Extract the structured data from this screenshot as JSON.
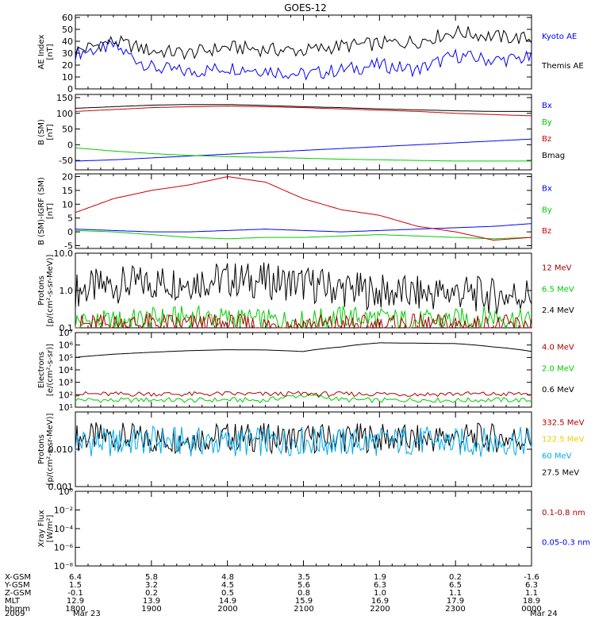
{
  "title": "GOES-12",
  "colors": {
    "black": "#000000",
    "blue": "#0000ff",
    "red": "#cc0000",
    "green": "#00cc00",
    "darkred": "#aa0000",
    "cyan": "#00aaee",
    "yellow": "#eecc00"
  },
  "chart_data": [
    {
      "type": "line",
      "ylabel": [
        "AE Index",
        "[nT]"
      ],
      "yticks": [
        "0",
        "10",
        "20",
        "30",
        "40",
        "50",
        "60"
      ],
      "ylim": [
        0,
        62
      ],
      "scale": "linear",
      "x": [
        "1800",
        "1830",
        "1900",
        "1930",
        "2000",
        "2030",
        "2100",
        "2130",
        "2200",
        "2230",
        "2300",
        "2330",
        "0000"
      ],
      "series": [
        {
          "name": "Kyoto AE",
          "color": "blue",
          "values": [
            30,
            36,
            18,
            14,
            18,
            16,
            12,
            16,
            20,
            16,
            28,
            24,
            26
          ]
        },
        {
          "name": "Themis AE",
          "color": "black",
          "values": [
            32,
            40,
            32,
            30,
            35,
            33,
            32,
            36,
            38,
            40,
            48,
            44,
            42
          ]
        }
      ],
      "legend": [
        {
          "text": "Kyoto AE",
          "color": "blue"
        },
        {
          "text": "Themis AE",
          "color": "black"
        }
      ]
    },
    {
      "type": "line",
      "ylabel": [
        "B (SM)",
        "[nT]"
      ],
      "yticks": [
        "-50",
        "0",
        "50",
        "100",
        "150"
      ],
      "ylim": [
        -80,
        160
      ],
      "scale": "linear",
      "x": [
        "1800",
        "1830",
        "1900",
        "1930",
        "2000",
        "2030",
        "2100",
        "2130",
        "2200",
        "2230",
        "2300",
        "2330",
        "0000"
      ],
      "series": [
        {
          "name": "Bx",
          "color": "blue",
          "values": [
            -52,
            -48,
            -42,
            -36,
            -30,
            -24,
            -18,
            -12,
            -6,
            0,
            6,
            12,
            18
          ]
        },
        {
          "name": "By",
          "color": "green",
          "values": [
            -10,
            -20,
            -28,
            -34,
            -38,
            -40,
            -43,
            -46,
            -48,
            -50,
            -52,
            -52,
            -52
          ]
        },
        {
          "name": "Bz",
          "color": "red",
          "values": [
            106,
            112,
            118,
            121,
            123,
            121,
            118,
            114,
            110,
            106,
            100,
            96,
            92
          ]
        },
        {
          "name": "Bmag",
          "color": "black",
          "values": [
            116,
            121,
            126,
            128,
            128,
            125,
            121,
            118,
            114,
            111,
            108,
            106,
            106
          ]
        }
      ],
      "legend": [
        {
          "text": "Bx",
          "color": "blue"
        },
        {
          "text": "By",
          "color": "green"
        },
        {
          "text": "Bz",
          "color": "red"
        },
        {
          "text": "Bmag",
          "color": "black"
        }
      ]
    },
    {
      "type": "line",
      "ylabel": [
        "B (SM)-IGRF (SM)",
        "[nT]"
      ],
      "yticks": [
        "-5",
        "0",
        "5",
        "10",
        "15",
        "20"
      ],
      "ylim": [
        -6,
        21
      ],
      "scale": "linear",
      "x": [
        "1800",
        "1830",
        "1900",
        "1930",
        "2000",
        "2030",
        "2100",
        "2130",
        "2200",
        "2230",
        "2300",
        "2330",
        "0000"
      ],
      "series": [
        {
          "name": "Bx",
          "color": "blue",
          "values": [
            1,
            0.5,
            0,
            0,
            0.5,
            1,
            0.5,
            0,
            0.5,
            1,
            1.5,
            2,
            3
          ]
        },
        {
          "name": "By",
          "color": "green",
          "values": [
            0.5,
            0,
            -1,
            -2,
            -2.5,
            -2,
            -2,
            -1.5,
            -1,
            -1.5,
            -2,
            -2.5,
            -2
          ]
        },
        {
          "name": "Bz",
          "color": "red",
          "values": [
            7,
            12,
            15,
            17,
            20,
            18,
            12,
            8,
            6,
            2,
            0,
            -3,
            -2
          ]
        }
      ],
      "legend": [
        {
          "text": "Bx",
          "color": "blue"
        },
        {
          "text": "By",
          "color": "green"
        },
        {
          "text": "Bz",
          "color": "red"
        }
      ]
    },
    {
      "type": "line",
      "ylabel": [
        "Protons",
        "[p/(cm²-s-sr-MeV)]"
      ],
      "yticks": [
        "0.1",
        "1.0",
        "10.0"
      ],
      "ylim": [
        0.1,
        10
      ],
      "scale": "log",
      "x": [
        "1800",
        "1830",
        "1900",
        "1930",
        "2000",
        "2030",
        "2100",
        "2130",
        "2200",
        "2230",
        "2300",
        "2330",
        "0000"
      ],
      "series": [
        {
          "name": "2.4 MeV",
          "color": "black",
          "values": [
            1.0,
            1.4,
            1.6,
            1.8,
            2.0,
            1.8,
            1.5,
            1.1,
            0.9,
            0.8,
            0.9,
            0.7,
            0.8
          ]
        },
        {
          "name": "6.5 MeV",
          "color": "green",
          "values": [
            0.15,
            0.15,
            0.18,
            0.2,
            0.18,
            0.16,
            0.15,
            0.2,
            0.18,
            0.15,
            0.17,
            0.2,
            0.15
          ]
        },
        {
          "name": "12 MeV",
          "color": "darkred",
          "values": [
            0.12,
            0.12,
            0.13,
            0.12,
            0.12,
            0.11,
            0.12,
            0.12,
            0.11,
            0.12,
            0.12,
            0.11,
            0.12
          ]
        }
      ],
      "legend": [
        {
          "text": "12 MeV",
          "color": "darkred"
        },
        {
          "text": "6.5 MeV",
          "color": "green"
        },
        {
          "text": "2.4 MeV",
          "color": "black"
        }
      ]
    },
    {
      "type": "line",
      "ylabel": [
        "Electrons",
        "[e/(cm²-s-sr)]"
      ],
      "yticks": [
        "10¹",
        "10²",
        "10³",
        "10⁴",
        "10⁵",
        "10⁶",
        "10⁷"
      ],
      "ylim": [
        10,
        10000000
      ],
      "scale": "log",
      "x": [
        "1800",
        "1830",
        "1900",
        "1930",
        "2000",
        "2030",
        "2100",
        "2130",
        "2200",
        "2230",
        "2300",
        "2330",
        "0000"
      ],
      "series": [
        {
          "name": "0.6 MeV",
          "color": "black",
          "values": [
            100000,
            180000,
            260000,
            350000,
            420000,
            400000,
            300000,
            700000,
            1500000,
            1400000,
            1300000,
            700000,
            300000
          ]
        },
        {
          "name": "2.0 MeV",
          "color": "green",
          "values": [
            40,
            35,
            40,
            35,
            40,
            35,
            90,
            40,
            35,
            40,
            35,
            40,
            35
          ]
        },
        {
          "name": "4.0 MeV",
          "color": "darkred",
          "values": [
            120,
            110,
            120,
            110,
            120,
            110,
            120,
            110,
            120,
            110,
            120,
            110,
            120
          ]
        }
      ],
      "legend": [
        {
          "text": "4.0 MeV",
          "color": "darkred"
        },
        {
          "text": "2.0 MeV",
          "color": "green"
        },
        {
          "text": "0.6 MeV",
          "color": "black"
        }
      ]
    },
    {
      "type": "line",
      "ylabel": [
        "Protons",
        "[p/(cm²-s-sr-MeV)]"
      ],
      "yticks": [
        "0.001",
        "0.010"
      ],
      "ylim": [
        0.001,
        0.1
      ],
      "scale": "log",
      "x": [
        "1800",
        "1830",
        "1900",
        "1930",
        "2000",
        "2030",
        "2100",
        "2130",
        "2200",
        "2230",
        "2300",
        "2330",
        "0000"
      ],
      "series": [
        {
          "name": "27.5 MeV",
          "color": "black",
          "values": [
            0.02,
            0.022,
            0.018,
            0.02,
            0.022,
            0.02,
            0.019,
            0.021,
            0.02,
            0.018,
            0.021,
            0.02,
            0.019
          ]
        },
        {
          "name": "60 MeV",
          "color": "cyan",
          "values": [
            0.016,
            0.015,
            0.017,
            0.016,
            0.015,
            0.016,
            0.017,
            0.015,
            0.016,
            0.017,
            0.015,
            0.016,
            0.016
          ]
        }
      ],
      "legend": [
        {
          "text": "332.5 MeV",
          "color": "darkred"
        },
        {
          "text": "122.5 MeV",
          "color": "yellow"
        },
        {
          "text": "60 MeV",
          "color": "cyan"
        },
        {
          "text": "27.5 MeV",
          "color": "black"
        }
      ]
    },
    {
      "type": "line",
      "ylabel": [
        "Xray Flux",
        "[W/m²]"
      ],
      "yticks": [
        "10⁻⁸",
        "10⁻⁶",
        "10⁻⁴",
        "10⁻²",
        "10⁰"
      ],
      "ylim": [
        1e-08,
        1
      ],
      "scale": "log",
      "x": [],
      "series": [],
      "legend": [
        {
          "text": "0.1-0.8 nm",
          "color": "darkred"
        },
        {
          "text": "0.05-0.3 nm",
          "color": "blue"
        }
      ]
    }
  ],
  "xaxis": {
    "tick_positions_labels": [
      "1800",
      "1900",
      "2000",
      "2100",
      "2200",
      "2300",
      "0000"
    ],
    "rows": [
      {
        "label": "X-GSM",
        "values": [
          "6.4",
          "5.8",
          "4.8",
          "3.5",
          "1.9",
          "0.2",
          "-1.6"
        ]
      },
      {
        "label": "Y-GSM",
        "values": [
          "1.5",
          "3.2",
          "4.5",
          "5.6",
          "6.3",
          "6.5",
          "6.3"
        ]
      },
      {
        "label": "Z-GSM",
        "values": [
          "-0.1",
          "0.2",
          "0.5",
          "0.8",
          "1.0",
          "1.1",
          "1.1"
        ]
      },
      {
        "label": "MLT",
        "values": [
          "12.9",
          "13.9",
          "14.9",
          "15.9",
          "16.9",
          "17.9",
          "18.9"
        ]
      },
      {
        "label": "hhmm",
        "values": [
          "1800",
          "1900",
          "2000",
          "2100",
          "2200",
          "2300",
          "0000"
        ]
      }
    ],
    "year": "2009",
    "start_date": "Mar 23",
    "end_date": "Mar 24"
  }
}
